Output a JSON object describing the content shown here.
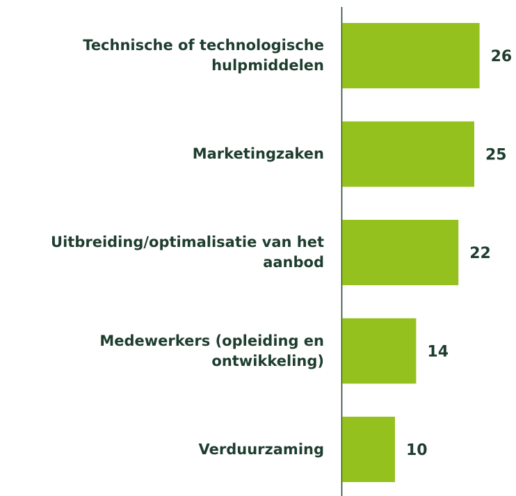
{
  "chart_data": {
    "type": "bar",
    "orientation": "horizontal",
    "categories": [
      "Technische of technologische hulpmiddelen",
      "Marketingzaken",
      "Uitbreiding/optimalisatie van het aanbod",
      "Medewerkers (opleiding en ontwikkeling)",
      "Verduurzaming"
    ],
    "values": [
      26,
      25,
      22,
      14,
      10
    ],
    "color": "#95c11f"
  }
}
